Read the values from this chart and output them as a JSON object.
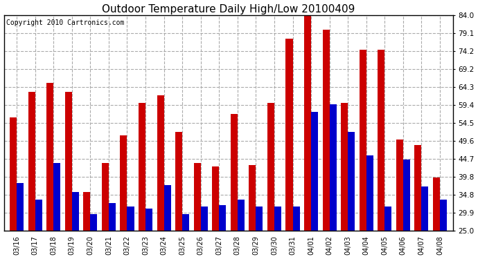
{
  "title": "Outdoor Temperature Daily High/Low 20100409",
  "copyright": "Copyright 2010 Cartronics.com",
  "dates": [
    "03/16",
    "03/17",
    "03/18",
    "03/19",
    "03/20",
    "03/21",
    "03/22",
    "03/23",
    "03/24",
    "03/25",
    "03/26",
    "03/27",
    "03/28",
    "03/29",
    "03/30",
    "03/31",
    "04/01",
    "04/02",
    "04/03",
    "04/04",
    "04/05",
    "04/06",
    "04/07",
    "04/08"
  ],
  "highs": [
    56.0,
    63.0,
    65.5,
    63.0,
    35.5,
    43.5,
    51.0,
    60.0,
    62.0,
    52.0,
    43.5,
    42.5,
    57.0,
    43.0,
    60.0,
    77.5,
    84.0,
    80.0,
    60.0,
    74.5,
    74.5,
    50.0,
    48.5,
    39.5
  ],
  "lows": [
    38.0,
    33.5,
    43.5,
    35.5,
    29.5,
    32.5,
    31.5,
    31.0,
    37.5,
    29.5,
    31.5,
    32.0,
    33.5,
    31.5,
    31.5,
    31.5,
    57.5,
    59.5,
    52.0,
    45.5,
    31.5,
    44.5,
    37.0,
    33.5
  ],
  "high_color": "#cc0000",
  "low_color": "#0000cc",
  "bg_color": "#ffffff",
  "plot_bg_color": "#ffffff",
  "grid_color": "#aaaaaa",
  "ymin": 25.0,
  "ymax": 84.0,
  "yticks": [
    25.0,
    29.9,
    34.8,
    39.8,
    44.7,
    49.6,
    54.5,
    59.4,
    64.3,
    69.2,
    74.2,
    79.1,
    84.0
  ],
  "title_fontsize": 11,
  "copyright_fontsize": 7,
  "bar_width": 0.38
}
